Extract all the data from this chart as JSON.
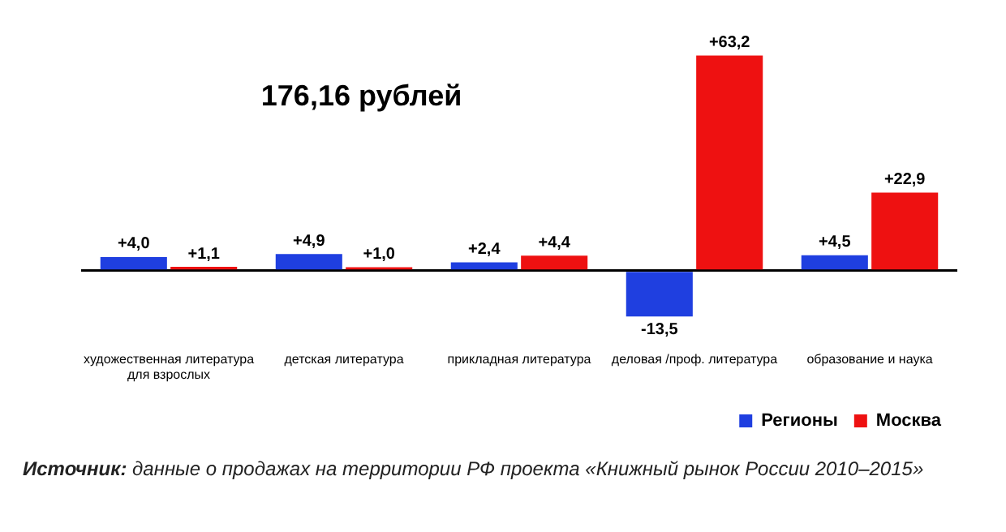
{
  "chart_data": {
    "type": "bar",
    "title": "176,16 рублей",
    "categories": [
      "художественная литература для взрослых",
      "детская литература",
      "прикладная литература",
      "деловая /проф. литература",
      "образование и наука"
    ],
    "series": [
      {
        "name": "Регионы",
        "color": "#1f3fe0",
        "values": [
          4.0,
          4.9,
          2.4,
          -13.5,
          4.5
        ],
        "value_labels": [
          "+4,0",
          "+4,9",
          "+2,4",
          "-13,5",
          "+4,5"
        ]
      },
      {
        "name": "Москва",
        "color": "#ee1111",
        "values": [
          1.1,
          1.0,
          4.4,
          63.2,
          22.9
        ],
        "value_labels": [
          "+1,1",
          "+1,0",
          "+4,4",
          "+63,2",
          "+22,9"
        ]
      }
    ],
    "grid": false,
    "legend": "bottom right",
    "tick_labels": "x",
    "annotations": [
      "Источник: данные о продажах на территории РФ проекта «Книжный рынок России 2010–2015»"
    ]
  }
}
